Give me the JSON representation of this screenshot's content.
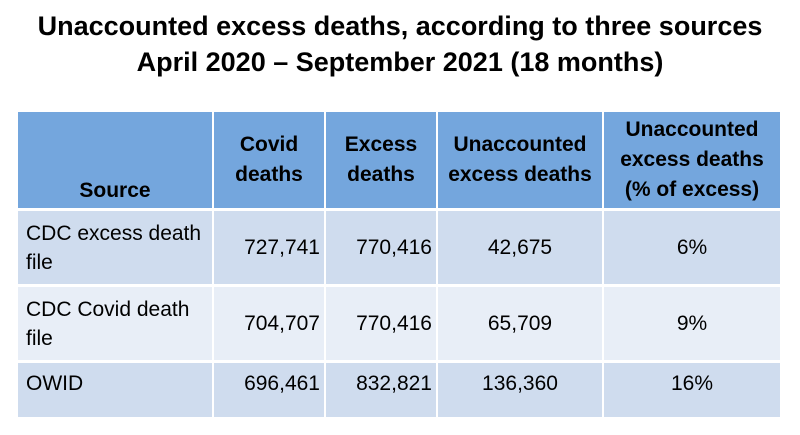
{
  "title": {
    "line1": "Unaccounted excess deaths, according to three sources",
    "line2": "April 2020 – September 2021 (18 months)"
  },
  "chart_data": {
    "type": "table",
    "columns": [
      "Source",
      "Covid deaths",
      "Excess deaths",
      "Unaccounted excess deaths",
      "Unaccounted excess deaths (% of excess)"
    ],
    "rows": [
      {
        "source": "CDC excess death file",
        "covid": "727,741",
        "excess": "770,416",
        "unaccounted": "42,675",
        "pct": "6%"
      },
      {
        "source": "CDC Covid death file",
        "covid": "704,707",
        "excess": "770,416",
        "unaccounted": "65,709",
        "pct": "9%"
      },
      {
        "source": "OWID",
        "covid": "696,461",
        "excess": "832,821",
        "unaccounted": "136,360",
        "pct": "16%"
      }
    ],
    "colors": {
      "header_bg": "#74a6dd",
      "row_odd_bg": "#cfdcee",
      "row_even_bg": "#e8eef7"
    }
  }
}
